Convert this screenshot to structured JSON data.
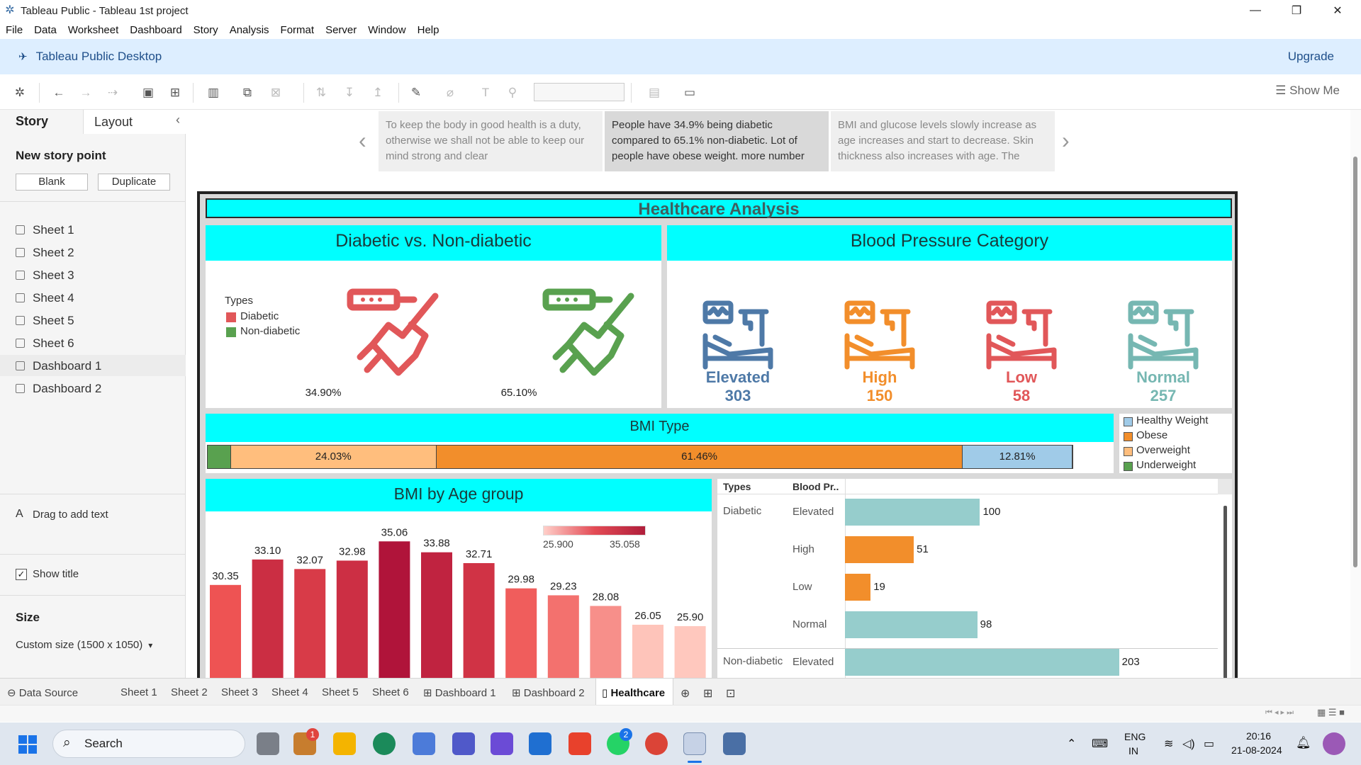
{
  "window": {
    "title": "Tableau Public - Tableau 1st project",
    "minimize_label": "—",
    "maximize_label": "❐",
    "close_label": "✕"
  },
  "menu": [
    "File",
    "Data",
    "Worksheet",
    "Dashboard",
    "Story",
    "Analysis",
    "Format",
    "Server",
    "Window",
    "Help"
  ],
  "header": {
    "title": "Tableau Public Desktop",
    "upgrade_label": "Upgrade"
  },
  "toolbar": {
    "show_me_label": "Show Me"
  },
  "left_pane": {
    "tab_story": "Story",
    "tab_layout": "Layout",
    "collapse_label": "‹",
    "new_story_point": "New story point",
    "blank_label": "Blank",
    "duplicate_label": "Duplicate",
    "sheets": [
      "Sheet 1",
      "Sheet 2",
      "Sheet 3",
      "Sheet 4",
      "Sheet 5",
      "Sheet 6"
    ],
    "dashboards": [
      "Dashboard 1",
      "Dashboard 2"
    ],
    "drag_text_icon": "A",
    "drag_text": "Drag to add text",
    "show_title_check": "✓",
    "show_title": "Show title",
    "size_heading": "Size",
    "size_value": "Custom size (1500 x 1050)",
    "size_caret": "▾"
  },
  "story_points": [
    "To keep the body in good health is a duty, otherwise we shall not be able to keep our mind strong and clear",
    "People have 34.9% being diabetic compared to 65.1% non-diabetic. Lot of people have obese weight. more number",
    "BMI and glucose levels slowly increase as age increases and start to decrease. Skin thickness also increases with age. The"
  ],
  "story_nav": {
    "prev": "‹",
    "next": "›"
  },
  "dashboard": {
    "title": "Healthcare Analysis",
    "diabetic": {
      "title": "Diabetic vs. Non-diabetic",
      "legend_title": "Types",
      "legend": [
        {
          "label": "Diabetic",
          "color": "#e15759"
        },
        {
          "label": "Non-diabetic",
          "color": "#59a14f"
        }
      ],
      "values": [
        "34.90%",
        "65.10%"
      ]
    },
    "bp": {
      "title": "Blood Pressure Category",
      "items": [
        {
          "label": "Elevated",
          "value": "303",
          "color": "#4e79a7"
        },
        {
          "label": "High",
          "value": "150",
          "color": "#f28e2b"
        },
        {
          "label": "Low",
          "value": "58",
          "color": "#e15759"
        },
        {
          "label": "Normal",
          "value": "257",
          "color": "#76b7b2"
        }
      ]
    },
    "bmi_type": {
      "title": "BMI Type",
      "segments": [
        {
          "name": "Underweight",
          "pct": 2.7,
          "label": "",
          "color": "#59a14f"
        },
        {
          "name": "Overweight",
          "pct": 24.03,
          "label": "24.03%",
          "color": "#ffbe7d"
        },
        {
          "name": "Obese",
          "pct": 61.46,
          "label": "61.46%",
          "color": "#f28e2b"
        },
        {
          "name": "Healthy Weight",
          "pct": 12.81,
          "label": "12.81%",
          "color": "#a0cbe8"
        }
      ],
      "legend": [
        {
          "label": "Healthy Weight",
          "color": "#a0cbe8"
        },
        {
          "label": "Obese",
          "color": "#f28e2b"
        },
        {
          "label": "Overweight",
          "color": "#ffbe7d"
        },
        {
          "label": "Underweight",
          "color": "#59a14f"
        }
      ]
    },
    "bmi_age": {
      "title": "BMI by Age group",
      "values": [
        30.35,
        33.1,
        32.07,
        32.98,
        35.06,
        33.88,
        32.71,
        29.98,
        29.23,
        28.08,
        26.05,
        25.9
      ],
      "labels": [
        "30.35",
        "33.10",
        "32.07",
        "32.98",
        "35.06",
        "33.88",
        "32.71",
        "29.98",
        "29.23",
        "28.08",
        "26.05",
        "25.90"
      ],
      "color_min": "25.900",
      "color_max": "35.058"
    },
    "bp_table": {
      "col_types": "Types",
      "col_bp": "Blood Pr..",
      "rows": [
        {
          "type": "Diabetic",
          "bp": "Elevated",
          "value": 100,
          "label": "100",
          "color": "#96cdcc"
        },
        {
          "type": "",
          "bp": "High",
          "value": 51,
          "label": "51",
          "color": "#f28e2b"
        },
        {
          "type": "",
          "bp": "Low",
          "value": 19,
          "label": "19",
          "color": "#f28e2b"
        },
        {
          "type": "",
          "bp": "Normal",
          "value": 98,
          "label": "98",
          "color": "#96cdcc"
        },
        {
          "type": "Non-diabetic",
          "bp": "Elevated",
          "value": 203,
          "label": "203",
          "color": "#96cdcc"
        }
      ]
    }
  },
  "bottom_tabs": [
    "Data Source",
    "Sheet 1",
    "Sheet 2",
    "Sheet 3",
    "Sheet 4",
    "Sheet 5",
    "Sheet 6",
    "Dashboard 1",
    "Dashboard 2",
    "Healthcare"
  ],
  "taskbar": {
    "search_label": "Search",
    "lang_top": "ENG",
    "lang_bottom": "IN",
    "time": "20:16",
    "date": "21-08-2024",
    "badge_1": "1",
    "badge_2": "2"
  }
}
